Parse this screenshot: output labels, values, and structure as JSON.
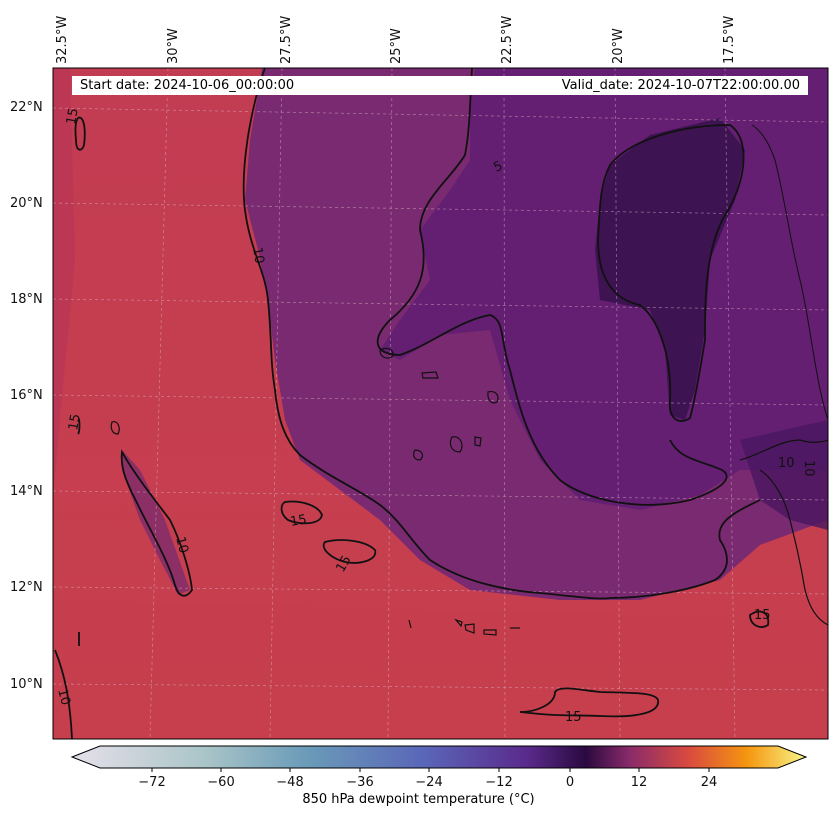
{
  "header": {
    "start_date": "Start date: 2024-10-06_00:00:00",
    "valid_date": "Valid_date: 2024-10-07T22:00:00.00"
  },
  "map": {
    "longitude_labels": [
      "32.5°W",
      "30°W",
      "27.5°W",
      "25°W",
      "22.5°W",
      "20°W",
      "17.5°W"
    ],
    "latitude_labels": [
      "22°N",
      "20°N",
      "18°N",
      "16°N",
      "14°N",
      "12°N",
      "10°N"
    ],
    "contour_labels": [
      "5",
      "10",
      "10",
      "10",
      "10",
      "10",
      "15",
      "15",
      "15",
      "15",
      "15",
      "15"
    ],
    "colors": {
      "warm": "#c73d4f",
      "mid": "#8a2b6a",
      "cool": "#5d1d72",
      "coldest": "#3a1050"
    }
  },
  "colorbar": {
    "ticks": [
      "−72",
      "−60",
      "−48",
      "−36",
      "−24",
      "−12",
      "0",
      "12",
      "24"
    ],
    "label": "850 hPa dewpoint temperature ($^\\circ$C)",
    "label_display": "850 hPa dewpoint temperature (°C)"
  }
}
